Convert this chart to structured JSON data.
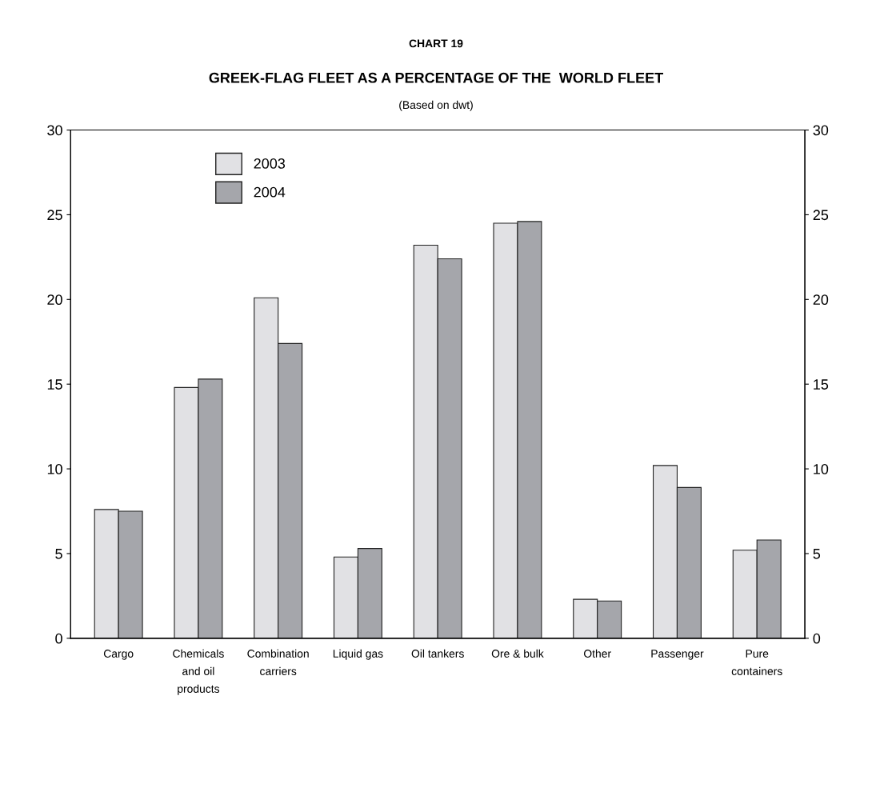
{
  "chart_data": {
    "type": "bar",
    "title": "GREEK-FLAG FLEET AS A PERCENTAGE OF THE  WORLD FLEET",
    "subtitle": "(Based on dwt)",
    "annotations": [
      "CHART 19"
    ],
    "categories": [
      "Cargo",
      "Chemicals\nand oil\nproducts",
      "Combination\ncarriers",
      "Liquid gas",
      "Oil tankers",
      "Ore & bulk",
      "Other",
      "Passenger",
      "Pure\ncontainers"
    ],
    "series": [
      {
        "name": "2003",
        "color": "#e1e1e4",
        "values": [
          7.6,
          14.8,
          20.1,
          4.8,
          23.2,
          24.5,
          2.3,
          10.2,
          5.2
        ]
      },
      {
        "name": "2004",
        "color": "#a5a6ab",
        "values": [
          7.5,
          15.3,
          17.4,
          5.3,
          22.4,
          24.6,
          2.2,
          8.9,
          5.8
        ]
      }
    ],
    "ylim": [
      0,
      30
    ],
    "yticks": [
      0,
      5,
      10,
      15,
      20,
      25,
      30
    ],
    "y2lim": [
      0,
      30
    ],
    "y2ticks": [
      0,
      5,
      10,
      15,
      20,
      25,
      30
    ],
    "grid": false,
    "legend": "top left"
  }
}
